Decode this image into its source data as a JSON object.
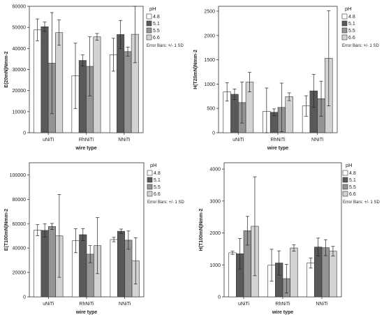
{
  "chart_data": [
    {
      "type": "bar",
      "xlabel": "wire type",
      "ylabel": "E(20mN)Nmm-2",
      "categories": [
        "uNiTi",
        "RhNiTi",
        "NNiTi"
      ],
      "ylim": [
        0,
        60000
      ],
      "yticks": [
        "0",
        "10000",
        "20000",
        "30000",
        "40000",
        "50000",
        "60000"
      ],
      "legend_title": "pH",
      "legend_note": "Error Bars: +/- 1 SD",
      "series": [
        {
          "name": "4.8",
          "color": "#ffffff",
          "values": [
            48800,
            27000,
            37000
          ],
          "sd": [
            5200,
            15500,
            7800
          ]
        },
        {
          "name": "5.1",
          "color": "#595959",
          "values": [
            50300,
            34300,
            46600
          ],
          "sd": [
            2200,
            2600,
            6700
          ]
        },
        {
          "name": "5.5",
          "color": "#949494",
          "values": [
            33000,
            31500,
            38500
          ],
          "sd": [
            24000,
            14000,
            2100
          ]
        },
        {
          "name": "6.6",
          "color": "#d2d2d2",
          "values": [
            47500,
            45500,
            46700
          ],
          "sd": [
            6000,
            1600,
            13500
          ]
        }
      ]
    },
    {
      "type": "bar",
      "xlabel": "wire type",
      "ylabel": "H(T20mN)Nmm-2",
      "categories": [
        "uNiTi",
        "RhNiTi",
        "NNiTi"
      ],
      "ylim": [
        0,
        2600
      ],
      "yticks": [
        "0",
        "500",
        "1000",
        "1500",
        "2000",
        "2500"
      ],
      "legend_title": "pH",
      "legend_note": "Error Bars: +/- 1 SD",
      "series": [
        {
          "name": "4.8",
          "color": "#ffffff",
          "values": [
            840,
            440,
            550
          ],
          "sd": [
            190,
            480,
            210
          ]
        },
        {
          "name": "5.1",
          "color": "#595959",
          "values": [
            790,
            420,
            860
          ],
          "sd": [
            110,
            70,
            340
          ]
        },
        {
          "name": "5.5",
          "color": "#949494",
          "values": [
            620,
            520,
            700
          ],
          "sd": [
            420,
            500,
            360
          ]
        },
        {
          "name": "6.6",
          "color": "#d2d2d2",
          "values": [
            1040,
            740,
            1530
          ],
          "sd": [
            200,
            80,
            980
          ]
        }
      ]
    },
    {
      "type": "bar",
      "xlabel": "wire type",
      "ylabel": "E(T100mN)Nmm-2",
      "categories": [
        "uNiTi",
        "RhNiTi",
        "NNiTi"
      ],
      "ylim": [
        0,
        110000
      ],
      "yticks": [
        "0",
        "20000",
        "40000",
        "60000",
        "80000",
        "100000"
      ],
      "legend_title": "pH",
      "legend_note": "Error Bars: +/- 1 SD",
      "series": [
        {
          "name": "4.8",
          "color": "#ffffff",
          "values": [
            54700,
            46000,
            47000
          ],
          "sd": [
            4500,
            9800,
            1800
          ]
        },
        {
          "name": "5.1",
          "color": "#595959",
          "values": [
            54500,
            51000,
            53800
          ],
          "sd": [
            5400,
            5000,
            1800
          ]
        },
        {
          "name": "5.5",
          "color": "#949494",
          "values": [
            57700,
            35000,
            46500
          ],
          "sd": [
            2500,
            7000,
            7500
          ]
        },
        {
          "name": "6.6",
          "color": "#d2d2d2",
          "values": [
            50000,
            42000,
            29500
          ],
          "sd": [
            34000,
            23000,
            19000
          ]
        }
      ]
    },
    {
      "type": "bar",
      "xlabel": "wire type",
      "ylabel": "H(T100mN)Nmm-2",
      "categories": [
        "uNiTi",
        "RhNiTi",
        "NNiTi"
      ],
      "ylim": [
        0,
        4200
      ],
      "yticks": [
        "0",
        "1000",
        "2000",
        "3000",
        "4000"
      ],
      "legend_title": "pH",
      "legend_note": "Error Bars: +/- 1 SD",
      "series": [
        {
          "name": "4.8",
          "color": "#ffffff",
          "values": [
            1380,
            990,
            1060
          ],
          "sd": [
            50,
            500,
            160
          ]
        },
        {
          "name": "5.1",
          "color": "#595959",
          "values": [
            1350,
            1060,
            1560
          ],
          "sd": [
            480,
            380,
            280
          ]
        },
        {
          "name": "5.5",
          "color": "#949494",
          "values": [
            2070,
            570,
            1540
          ],
          "sd": [
            450,
            450,
            250
          ]
        },
        {
          "name": "6.6",
          "color": "#d2d2d2",
          "values": [
            2210,
            1530,
            1430
          ],
          "sd": [
            1550,
            100,
            150
          ]
        }
      ]
    }
  ]
}
